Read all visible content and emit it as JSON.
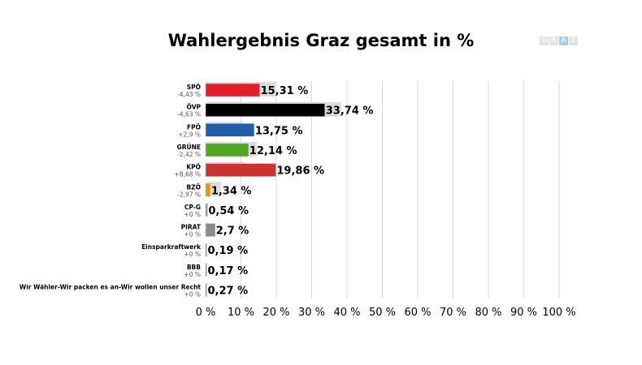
{
  "title": "Wahlergebnis Graz gesamt in %",
  "logo": {
    "letters": [
      "G",
      "R",
      "A",
      "Z"
    ],
    "highlight_color": "#a9d0e2"
  },
  "chart_data": {
    "type": "bar",
    "orientation": "horizontal",
    "title": "Wahlergebnis Graz gesamt in %",
    "xlim": [
      0,
      100
    ],
    "xticks": [
      0,
      10,
      20,
      30,
      40,
      50,
      60,
      70,
      80,
      90,
      100
    ],
    "xtick_labels": [
      "0 %",
      "10 %",
      "20 %",
      "30 %",
      "40 %",
      "50 %",
      "60 %",
      "70 %",
      "80 %",
      "90 %",
      "100 %"
    ],
    "grid": true,
    "categories": [
      "SPÖ",
      "ÖVP",
      "FPÖ",
      "GRÜNE",
      "KPÖ",
      "BZÖ",
      "CP-G",
      "PIRAT",
      "Einsparkraftwerk",
      "BBB",
      "Wir Wähler-Wir packen es an-Wir wollen unser Recht"
    ],
    "values": [
      15.31,
      33.74,
      13.75,
      12.14,
      19.86,
      1.34,
      0.54,
      2.7,
      0.19,
      0.17,
      0.27
    ],
    "value_labels": [
      "15,31 %",
      "33,74 %",
      "13,75 %",
      "12,14 %",
      "19,86 %",
      "1,34 %",
      "0,54 %",
      "2,7 %",
      "0,19 %",
      "0,17 %",
      "0,27 %"
    ],
    "changes": [
      "-4,43 %",
      "-4,63 %",
      "+2,9 %",
      "-2,42 %",
      "+8,68 %",
      "-2,97 %",
      "+0 %",
      "+0 %",
      "+0 %",
      "+0 %",
      "+0 %"
    ],
    "previous_values": [
      19.74,
      38.37,
      10.85,
      14.56,
      11.18,
      4.31,
      0,
      0,
      0,
      0,
      0
    ],
    "colors": [
      "#e31e2d",
      "#000000",
      "#215ca8",
      "#52a623",
      "#cc3333",
      "#f29400",
      "#8c8c8c",
      "#8c8c8c",
      "#8c8c8c",
      "#8c8c8c",
      "#8c8c8c"
    ],
    "previous_color": "#dcdcdc"
  }
}
